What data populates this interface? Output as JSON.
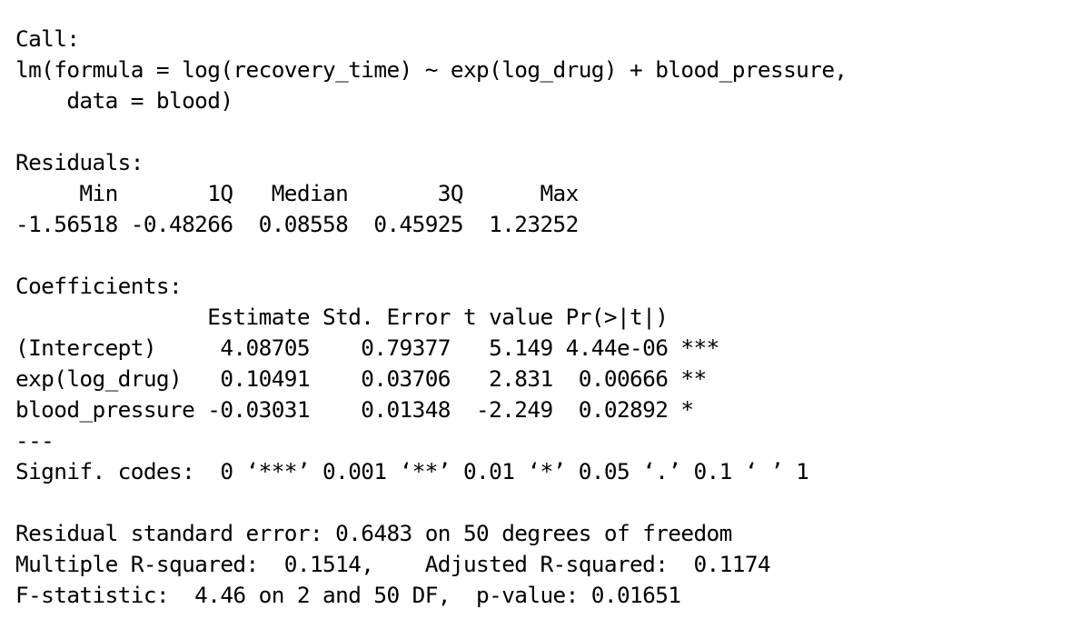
{
  "output": {
    "lines": [
      "Call:",
      "lm(formula = log(recovery_time) ~ exp(log_drug) + blood_pressure, ",
      "    data = blood)",
      "",
      "Residuals:",
      "     Min       1Q   Median       3Q      Max ",
      "-1.56518 -0.48266  0.08558  0.45925  1.23252 ",
      "",
      "Coefficients:",
      "               Estimate Std. Error t value Pr(>|t|)    ",
      "(Intercept)     4.08705    0.79377   5.149 4.44e-06 ***",
      "exp(log_drug)   0.10491    0.03706   2.831  0.00666 ** ",
      "blood_pressure -0.03031    0.01348  -2.249  0.02892 *  ",
      "---",
      "Signif. codes:  0 ‘***’ 0.001 ‘**’ 0.01 ‘*’ 0.05 ‘.’ 0.1 ‘ ’ 1",
      "",
      "Residual standard error: 0.6483 on 50 degrees of freedom",
      "Multiple R-squared:  0.1514,\tAdjusted R-squared:  0.1174 ",
      "F-statistic:  4.46 on 2 and 50 DF,  p-value: 0.01651"
    ]
  }
}
